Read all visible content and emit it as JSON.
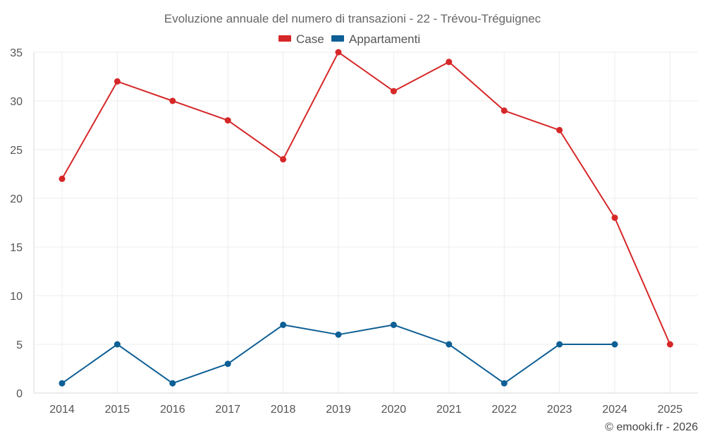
{
  "chart_data": {
    "type": "line",
    "title": "Evoluzione annuale del numero di transazioni - 22 - Trévou-Tréguignec",
    "categories": [
      "2014",
      "2015",
      "2016",
      "2017",
      "2018",
      "2019",
      "2020",
      "2021",
      "2022",
      "2023",
      "2024",
      "2025"
    ],
    "series": [
      {
        "name": "Case",
        "color": "#d62728",
        "values": [
          22,
          32,
          30,
          28,
          24,
          35,
          31,
          34,
          29,
          27,
          18,
          5
        ]
      },
      {
        "name": "Appartamenti",
        "color": "#0e5f95",
        "values": [
          1,
          5,
          1,
          3,
          7,
          6,
          7,
          5,
          1,
          5,
          5,
          null
        ]
      }
    ],
    "ylim": [
      0,
      35
    ],
    "yticks": [
      "0",
      "5",
      "10",
      "15",
      "20",
      "25",
      "30",
      "35"
    ],
    "xlabel": "",
    "ylabel": "",
    "grid": true,
    "legend": "top-center"
  },
  "credit": "© emooki.fr - 2026"
}
